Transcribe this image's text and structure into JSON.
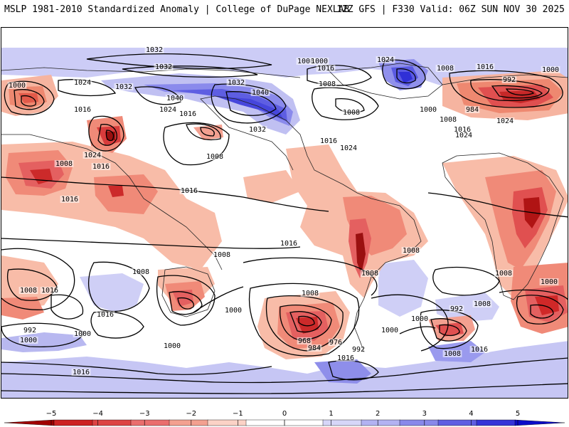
{
  "header": {
    "left_title": "MSLP 1981-2010 Standardized Anomaly | College of DuPage NEXLAB",
    "right_title": "12Z GFS | F330 Valid: 06Z SUN NOV 30 2025"
  },
  "map": {
    "contour_labels": [
      "1032",
      "1032",
      "1000",
      "1024",
      "1032",
      "1016",
      "1040",
      "1024",
      "1016",
      "1032",
      "1040",
      "1032",
      "1024",
      "1008",
      "1016",
      "1016",
      "1024",
      "1008",
      "1016",
      "1000",
      "1000",
      "992",
      "984",
      "1008",
      "1016",
      "1024",
      "1024",
      "1008",
      "1008",
      "1016",
      "1024",
      "1008",
      "1016",
      "1016",
      "1008",
      "1008",
      "1008",
      "1016",
      "1008",
      "1008",
      "1008",
      "1016",
      "1016",
      "1000",
      "992",
      "1000",
      "968",
      "984",
      "976",
      "992",
      "1000",
      "1000",
      "1008",
      "992",
      "1000",
      "1008",
      "1000",
      "1016",
      "1000",
      "1016",
      "1008",
      "1016",
      "1008",
      "1000"
    ],
    "anomaly_colors": {
      "neg_strong": "#8b0000",
      "neg_4": "#cc2a2a",
      "neg_3": "#e46060",
      "neg_2": "#f08a78",
      "neg_1": "#f8bca8",
      "pos_1": "#c8c8f4",
      "pos_2": "#9a9aee",
      "pos_3": "#6a6ae6",
      "pos_4": "#3a3ade",
      "pos_strong": "#0000c8"
    }
  },
  "colorbar": {
    "ticks": [
      "−5",
      "−4",
      "−3",
      "−2",
      "−1",
      "0",
      "1",
      "2",
      "3",
      "4",
      "5"
    ],
    "colors": [
      "#a00000",
      "#cc2222",
      "#dd4444",
      "#ea6e6e",
      "#f3a090",
      "#fbd2c6",
      "#ffffff",
      "#ffffff",
      "#d6d6f8",
      "#b2b2f2",
      "#8888ea",
      "#5e5ee2",
      "#3434d8",
      "#0c0cc8"
    ]
  }
}
